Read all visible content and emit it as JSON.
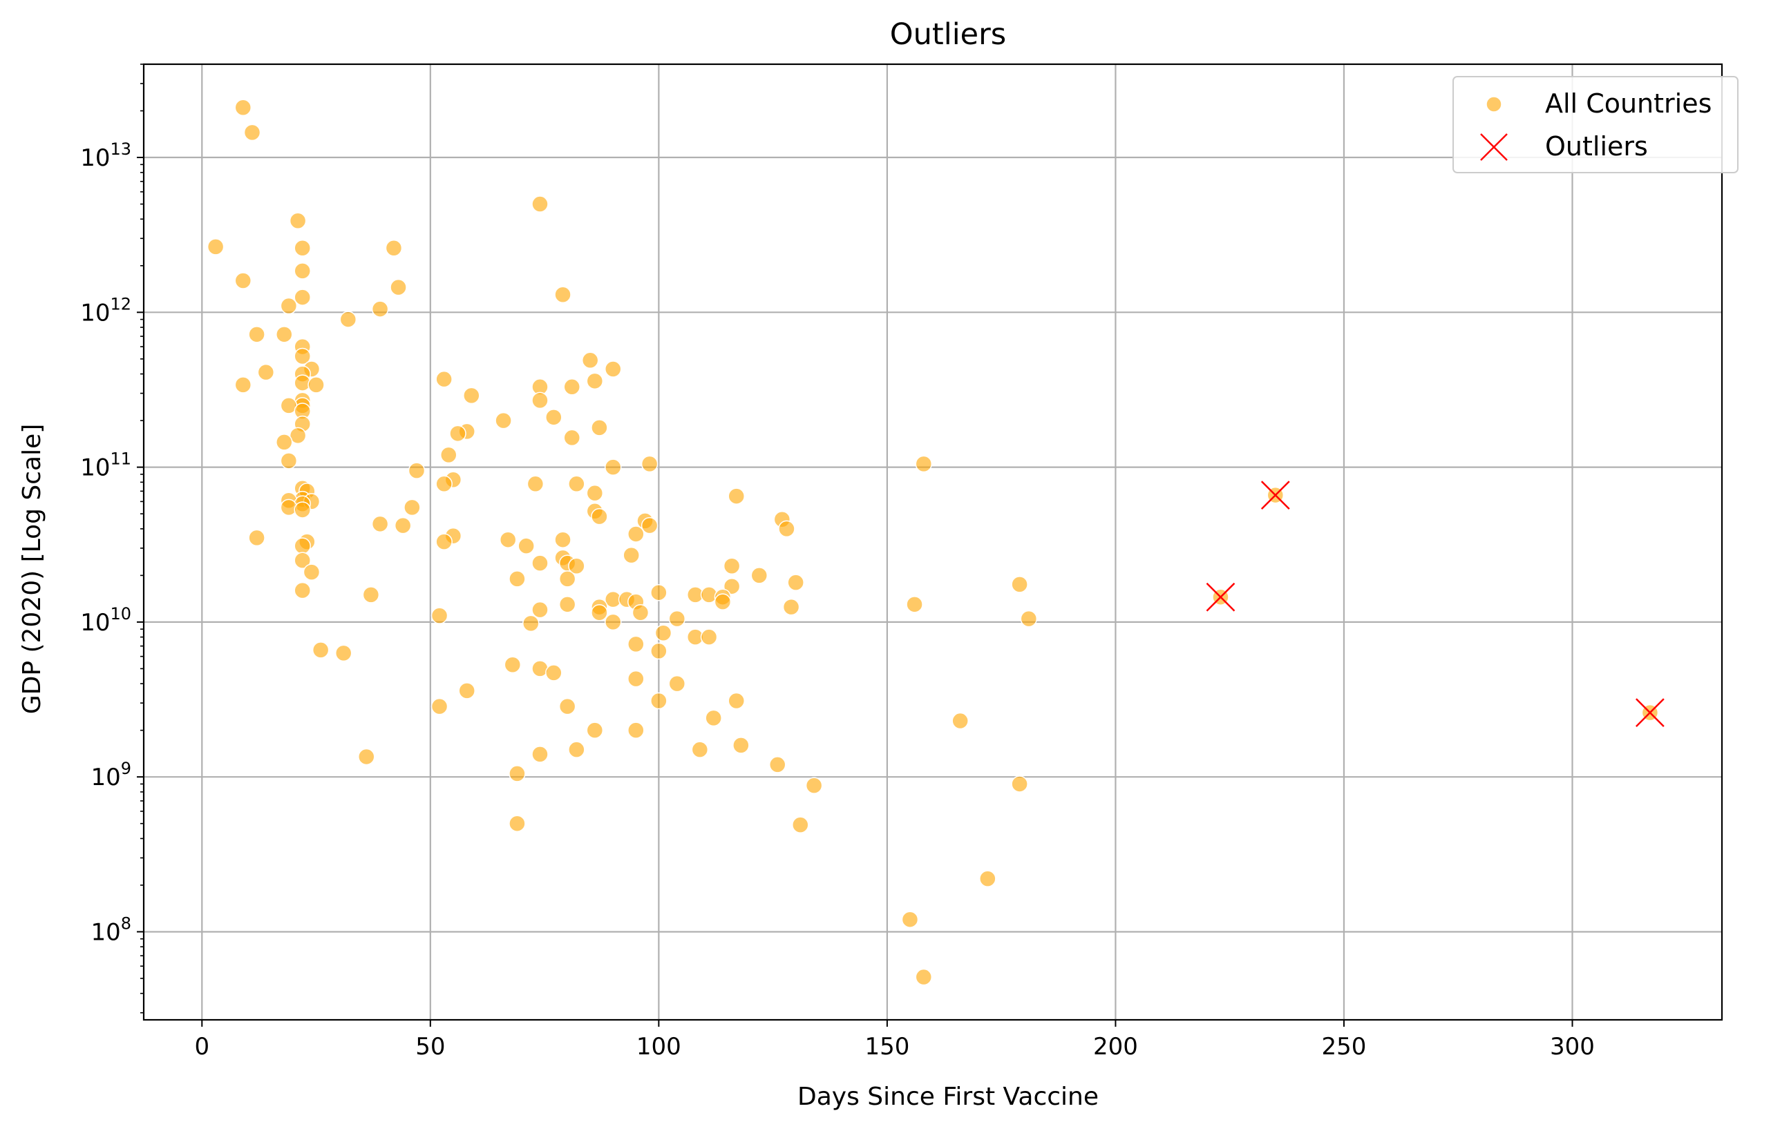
{
  "chart_data": {
    "type": "scatter",
    "title": "Outliers",
    "xlabel": "Days Since First Vaccine",
    "ylabel": "GDP (2020) [Log Scale]",
    "xlim": [
      -12.75,
      332.75
    ],
    "ylim": [
      27000000.0,
      40000000000000.0
    ],
    "y_scale": "log",
    "x_ticks": [
      0,
      50,
      100,
      150,
      200,
      250,
      300
    ],
    "y_ticks": [
      {
        "value": 100000000.0,
        "base": "10",
        "exp": "8"
      },
      {
        "value": 1000000000.0,
        "base": "10",
        "exp": "9"
      },
      {
        "value": 10000000000.0,
        "base": "10",
        "exp": "10"
      },
      {
        "value": 100000000000.0,
        "base": "10",
        "exp": "11"
      },
      {
        "value": 1000000000000.0,
        "base": "10",
        "exp": "12"
      },
      {
        "value": 10000000000000.0,
        "base": "10",
        "exp": "13"
      }
    ],
    "grid": true,
    "legend_position": "top-right",
    "colors": {
      "all_countries": "#FFA500",
      "outliers": "#FF0000"
    },
    "series": [
      {
        "name": "All Countries",
        "marker": "circle",
        "points": [
          [
            9,
            21000000000000.0
          ],
          [
            11,
            14500000000000.0
          ],
          [
            74,
            5000000000000.0
          ],
          [
            21,
            3900000000000.0
          ],
          [
            3,
            2650000000000.0
          ],
          [
            22,
            2600000000000.0
          ],
          [
            42,
            2600000000000.0
          ],
          [
            22,
            1850000000000.0
          ],
          [
            9,
            1600000000000.0
          ],
          [
            43,
            1450000000000.0
          ],
          [
            79,
            1300000000000.0
          ],
          [
            22,
            1250000000000.0
          ],
          [
            19,
            1100000000000.0
          ],
          [
            39,
            1050000000000.0
          ],
          [
            32,
            900000000000.0
          ],
          [
            12,
            720000000000.0
          ],
          [
            18,
            720000000000.0
          ],
          [
            22,
            600000000000.0
          ],
          [
            22,
            520000000000.0
          ],
          [
            85,
            490000000000.0
          ],
          [
            90,
            430000000000.0
          ],
          [
            24,
            430000000000.0
          ],
          [
            14,
            410000000000.0
          ],
          [
            22,
            400000000000.0
          ],
          [
            53,
            370000000000.0
          ],
          [
            86,
            360000000000.0
          ],
          [
            22,
            350000000000.0
          ],
          [
            25,
            340000000000.0
          ],
          [
            9,
            340000000000.0
          ],
          [
            74,
            330000000000.0
          ],
          [
            81,
            330000000000.0
          ],
          [
            59,
            290000000000.0
          ],
          [
            22,
            270000000000.0
          ],
          [
            74,
            270000000000.0
          ],
          [
            22,
            250000000000.0
          ],
          [
            19,
            250000000000.0
          ],
          [
            22,
            230000000000.0
          ],
          [
            77,
            210000000000.0
          ],
          [
            66,
            200000000000.0
          ],
          [
            22,
            190000000000.0
          ],
          [
            87,
            180000000000.0
          ],
          [
            58,
            170000000000.0
          ],
          [
            56,
            165000000000.0
          ],
          [
            21,
            160000000000.0
          ],
          [
            81,
            155000000000.0
          ],
          [
            18,
            145000000000.0
          ],
          [
            54,
            120000000000.0
          ],
          [
            19,
            110000000000.0
          ],
          [
            98,
            105000000000.0
          ],
          [
            158,
            105000000000.0
          ],
          [
            90,
            100000000000.0
          ],
          [
            47,
            95000000000.0
          ],
          [
            55,
            83000000000.0
          ],
          [
            53,
            78000000000.0
          ],
          [
            73,
            78000000000.0
          ],
          [
            82,
            78000000000.0
          ],
          [
            22,
            73000000000.0
          ],
          [
            23,
            70000000000.0
          ],
          [
            86,
            68000000000.0
          ],
          [
            117,
            65000000000.0
          ],
          [
            22,
            62000000000.0
          ],
          [
            19,
            61000000000.0
          ],
          [
            24,
            60000000000.0
          ],
          [
            22,
            58000000000.0
          ],
          [
            46,
            55000000000.0
          ],
          [
            19,
            55000000000.0
          ],
          [
            86,
            52000000000.0
          ],
          [
            22,
            53000000000.0
          ],
          [
            87,
            48000000000.0
          ],
          [
            127,
            46000000000.0
          ],
          [
            97,
            45000000000.0
          ],
          [
            39,
            43000000000.0
          ],
          [
            44,
            42000000000.0
          ],
          [
            98,
            42000000000.0
          ],
          [
            128,
            40000000000.0
          ],
          [
            95,
            37000000000.0
          ],
          [
            55,
            36000000000.0
          ],
          [
            12,
            35000000000.0
          ],
          [
            67,
            34000000000.0
          ],
          [
            79,
            34000000000.0
          ],
          [
            53,
            33000000000.0
          ],
          [
            23,
            33000000000.0
          ],
          [
            71,
            31000000000.0
          ],
          [
            22,
            31000000000.0
          ],
          [
            94,
            27000000000.0
          ],
          [
            79,
            26000000000.0
          ],
          [
            74,
            24000000000.0
          ],
          [
            22,
            25000000000.0
          ],
          [
            80,
            24000000000.0
          ],
          [
            116,
            23000000000.0
          ],
          [
            82,
            23000000000.0
          ],
          [
            24,
            21000000000.0
          ],
          [
            122,
            20000000000.0
          ],
          [
            69,
            19000000000.0
          ],
          [
            80,
            19000000000.0
          ],
          [
            130,
            18000000000.0
          ],
          [
            179,
            17500000000.0
          ],
          [
            116,
            17000000000.0
          ],
          [
            22,
            16000000000.0
          ],
          [
            100,
            15500000000.0
          ],
          [
            37,
            15000000000.0
          ],
          [
            108,
            15000000000.0
          ],
          [
            111,
            15000000000.0
          ],
          [
            114,
            14500000000.0
          ],
          [
            90,
            14000000000.0
          ],
          [
            93,
            14000000000.0
          ],
          [
            95,
            13500000000.0
          ],
          [
            114,
            13500000000.0
          ],
          [
            80,
            13000000000.0
          ],
          [
            156,
            13000000000.0
          ],
          [
            87,
            12500000000.0
          ],
          [
            129,
            12500000000.0
          ],
          [
            74,
            12000000000.0
          ],
          [
            87,
            11500000000.0
          ],
          [
            96,
            11500000000.0
          ],
          [
            52,
            11000000000.0
          ],
          [
            181,
            10500000000.0
          ],
          [
            104,
            10500000000.0
          ],
          [
            90,
            10000000000.0
          ],
          [
            72,
            9800000000.0
          ],
          [
            101,
            8500000000.0
          ],
          [
            108,
            8000000000.0
          ],
          [
            111,
            8000000000.0
          ],
          [
            95,
            7200000000.0
          ],
          [
            26,
            6600000000.0
          ],
          [
            100,
            6500000000.0
          ],
          [
            31,
            6300000000.0
          ],
          [
            68,
            5300000000.0
          ],
          [
            74,
            5000000000.0
          ],
          [
            77,
            4700000000.0
          ],
          [
            95,
            4300000000.0
          ],
          [
            104,
            4000000000.0
          ],
          [
            58,
            3600000000.0
          ],
          [
            100,
            3100000000.0
          ],
          [
            117,
            3100000000.0
          ],
          [
            52,
            2850000000.0
          ],
          [
            80,
            2850000000.0
          ],
          [
            112,
            2400000000.0
          ],
          [
            166,
            2300000000.0
          ],
          [
            86,
            2000000000.0
          ],
          [
            95,
            2000000000.0
          ],
          [
            118,
            1600000000.0
          ],
          [
            82,
            1500000000.0
          ],
          [
            109,
            1500000000.0
          ],
          [
            74,
            1400000000.0
          ],
          [
            36,
            1350000000.0
          ],
          [
            126,
            1200000000.0
          ],
          [
            69,
            1050000000.0
          ],
          [
            134,
            880000000.0
          ],
          [
            179,
            900000000.0
          ],
          [
            69,
            500000000.0
          ],
          [
            131,
            490000000.0
          ],
          [
            172,
            220000000.0
          ],
          [
            155,
            120000000.0
          ],
          [
            158,
            51000000.0
          ]
        ]
      },
      {
        "name": "Outliers",
        "marker": "x",
        "points": [
          [
            235,
            66000000000.0
          ],
          [
            223,
            14500000000.0
          ],
          [
            317,
            2600000000.0
          ]
        ]
      }
    ]
  }
}
